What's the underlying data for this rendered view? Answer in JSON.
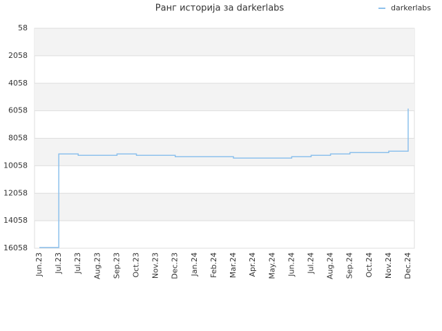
{
  "chart_data": {
    "type": "line",
    "title": "Ранг историја за darkerlabs",
    "categories": [
      "Jun.23",
      "Jul.23",
      "Jul.23",
      "Aug.23",
      "Sep.23",
      "Oct.23",
      "Nov.23",
      "Dec.23",
      "Jan.24",
      "Feb.24",
      "Mar.24",
      "Apr.24",
      "May.24",
      "Jun.24",
      "Jul.24",
      "Aug.24",
      "Sep.24",
      "Oct.24",
      "Nov.24",
      "Dec.24"
    ],
    "series": [
      {
        "name": "darkerlabs",
        "color": "#8cc0ec",
        "values": [
          16000,
          9200,
          9300,
          9300,
          9200,
          9300,
          9300,
          9400,
          9400,
          9400,
          9500,
          9500,
          9500,
          9400,
          9300,
          9200,
          9100,
          9100,
          9000,
          5900
        ]
      }
    ],
    "ylim": [
      16058,
      58
    ],
    "yticks": [
      58,
      2058,
      4058,
      6058,
      8058,
      10058,
      12058,
      14058,
      16058
    ],
    "grid": true,
    "banded": true,
    "step": true,
    "legend": "upper right"
  }
}
